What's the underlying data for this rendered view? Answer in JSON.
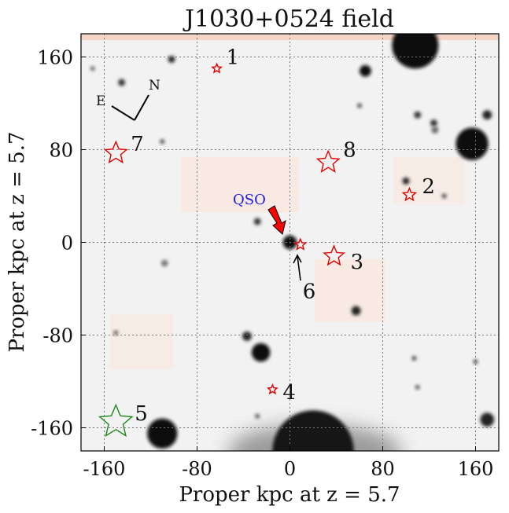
{
  "chart_data": {
    "type": "scatter",
    "title": "J1030+0524 field",
    "xlabel": "Proper kpc at z = 5.7",
    "ylabel": "Proper kpc at z = 5.7",
    "xlim": [
      -180,
      180
    ],
    "ylim": [
      -180,
      180
    ],
    "xticks": [
      -160,
      -80,
      0,
      80,
      160
    ],
    "yticks": [
      160,
      80,
      0,
      -80,
      -160
    ],
    "xtick_labels": [
      "-160",
      "-80",
      "0",
      "80",
      "160"
    ],
    "ytick_labels": [
      "160",
      "80",
      "0",
      "-80",
      "-160"
    ],
    "grid": true,
    "compass": {
      "north": "N",
      "east": "E"
    },
    "qso": {
      "label": "QSO",
      "x": 0,
      "y": 0,
      "arrow_color": "#ff0000",
      "label_color": "#1a1ae6"
    },
    "sources": [
      {
        "id": "1",
        "x": -63,
        "y": 150,
        "size": 5,
        "color": "#e00000"
      },
      {
        "id": "2",
        "x": 103,
        "y": 41,
        "size": 7,
        "color": "#e00000"
      },
      {
        "id": "3",
        "x": 38,
        "y": -12,
        "size": 11,
        "color": "#e00000"
      },
      {
        "id": "4",
        "x": -15,
        "y": -127,
        "size": 5,
        "color": "#e00000"
      },
      {
        "id": "5",
        "x": -150,
        "y": -155,
        "size": 18,
        "color": "#1a8a1a"
      },
      {
        "id": "6",
        "x": 9,
        "y": -2,
        "size": 6,
        "color": "#e00000"
      },
      {
        "id": "7",
        "x": -150,
        "y": 77,
        "size": 12,
        "color": "#e00000"
      },
      {
        "id": "8",
        "x": 33,
        "y": 69,
        "size": 12,
        "color": "#e00000"
      }
    ],
    "background": {
      "description": "grayscale deep-field image",
      "blobs": [
        {
          "x": 108,
          "y": 170,
          "r": 20,
          "shade": "#0a0a0a"
        },
        {
          "x": 157,
          "y": 85,
          "r": 14,
          "shade": "#0a0a0a"
        },
        {
          "x": -110,
          "y": -165,
          "r": 13,
          "shade": "#111111"
        },
        {
          "x": -25,
          "y": -95,
          "r": 8,
          "shade": "#111111"
        },
        {
          "x": 20,
          "y": -180,
          "r": 35,
          "shade": "#151515"
        },
        {
          "x": 0,
          "y": 0,
          "r": 6,
          "shade": "#111111"
        },
        {
          "x": 65,
          "y": 148,
          "r": 5,
          "shade": "#111111"
        },
        {
          "x": 170,
          "y": -153,
          "r": 6,
          "shade": "#222222"
        },
        {
          "x": 57,
          "y": -59,
          "r": 4,
          "shade": "#222222"
        },
        {
          "x": 100,
          "y": 53,
          "r": 3,
          "shade": "#222222"
        },
        {
          "x": 170,
          "y": 110,
          "r": 4,
          "shade": "#222222"
        },
        {
          "x": -37,
          "y": -81,
          "r": 4,
          "shade": "#222222"
        },
        {
          "x": -102,
          "y": 158,
          "r": 3,
          "shade": "#222222"
        },
        {
          "x": 110,
          "y": 110,
          "r": 3,
          "shade": "#333333"
        },
        {
          "x": -28,
          "y": 18,
          "r": 3,
          "shade": "#333333"
        },
        {
          "x": 124,
          "y": 103,
          "r": 3,
          "shade": "#333333"
        },
        {
          "x": -145,
          "y": 138,
          "r": 3,
          "shade": "#333333"
        },
        {
          "x": 133,
          "y": 40,
          "r": 2,
          "shade": "#444444"
        },
        {
          "x": -110,
          "y": 87,
          "r": 2,
          "shade": "#444444"
        },
        {
          "x": 107,
          "y": -100,
          "r": 2,
          "shade": "#444444"
        },
        {
          "x": 160,
          "y": -103,
          "r": 2,
          "shade": "#444444"
        },
        {
          "x": 60,
          "y": 118,
          "r": 2,
          "shade": "#444444"
        },
        {
          "x": -150,
          "y": -78,
          "r": 2,
          "shade": "#555555"
        },
        {
          "x": -28,
          "y": -150,
          "r": 2,
          "shade": "#555555"
        },
        {
          "x": 110,
          "y": -125,
          "r": 2,
          "shade": "#555555"
        },
        {
          "x": -108,
          "y": -18,
          "r": 3,
          "shade": "#777777"
        },
        {
          "x": 125,
          "y": 97,
          "r": 3,
          "shade": "#666666"
        },
        {
          "x": -170,
          "y": 150,
          "r": 2,
          "shade": "#666666"
        }
      ]
    }
  }
}
